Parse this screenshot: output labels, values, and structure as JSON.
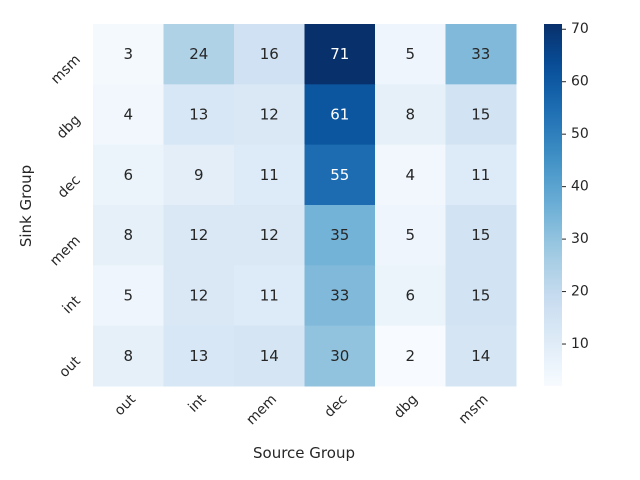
{
  "chart_data": {
    "type": "heatmap",
    "title": "",
    "xlabel": "Source Group",
    "ylabel": "Sink Group",
    "x_categories": [
      "out",
      "int",
      "mem",
      "dec",
      "dbg",
      "msm"
    ],
    "y_categories": [
      "msm",
      "dbg",
      "dec",
      "mem",
      "int",
      "out"
    ],
    "values": [
      [
        3,
        24,
        16,
        71,
        5,
        33
      ],
      [
        4,
        13,
        12,
        61,
        8,
        15
      ],
      [
        6,
        9,
        11,
        55,
        4,
        11
      ],
      [
        8,
        12,
        12,
        35,
        5,
        15
      ],
      [
        5,
        12,
        11,
        33,
        6,
        15
      ],
      [
        8,
        13,
        14,
        30,
        2,
        14
      ]
    ],
    "colormap": "Blues",
    "color_range": [
      2,
      71
    ],
    "colorbar_ticks": [
      10,
      20,
      30,
      40,
      50,
      60,
      70
    ],
    "grid": false
  }
}
